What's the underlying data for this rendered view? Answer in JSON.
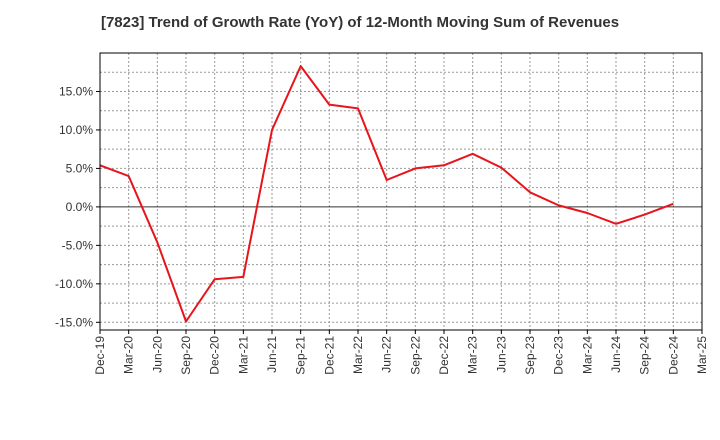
{
  "chart_data": {
    "type": "line",
    "title": "[7823]  Trend of Growth Rate (YoY) of 12-Month Moving Sum of Revenues",
    "xlabel": "",
    "ylabel": "",
    "ylim": [
      -16,
      20
    ],
    "y_ticks": [
      15,
      10,
      5,
      0,
      -5,
      -10,
      -15
    ],
    "y_tick_labels": [
      "15.0%",
      "10.0%",
      "5.0%",
      "0.0%",
      "-5.0%",
      "-10.0%",
      "-15.0%"
    ],
    "x_tick_labels": [
      "Dec-19",
      "Mar-20",
      "Jun-20",
      "Sep-20",
      "Dec-20",
      "Mar-21",
      "Jun-21",
      "Sep-21",
      "Dec-21",
      "Mar-22",
      "Jun-22",
      "Sep-22",
      "Dec-22",
      "Mar-23",
      "Jun-23",
      "Sep-23",
      "Dec-23",
      "Mar-24",
      "Jun-24",
      "Sep-24",
      "Dec-24",
      "Mar-25"
    ],
    "grid": true,
    "series": [
      {
        "color": "#e8141b",
        "x": [
          "Dec-19",
          "Mar-20",
          "Jun-20",
          "Sep-20",
          "Dec-20",
          "Mar-21",
          "Jun-21",
          "Sep-21",
          "Dec-21",
          "Mar-22",
          "Jun-22",
          "Sep-22",
          "Dec-22",
          "Mar-23",
          "Jun-23",
          "Sep-23",
          "Dec-23",
          "Mar-24",
          "Jun-24",
          "Sep-24",
          "Dec-24"
        ],
        "values": [
          5.4,
          4.0,
          -4.6,
          -14.9,
          -9.4,
          -9.1,
          10.0,
          18.3,
          13.3,
          12.8,
          3.5,
          5.0,
          5.4,
          6.9,
          5.1,
          1.9,
          0.2,
          -0.8,
          -2.2,
          -1.0,
          0.4
        ]
      }
    ]
  }
}
